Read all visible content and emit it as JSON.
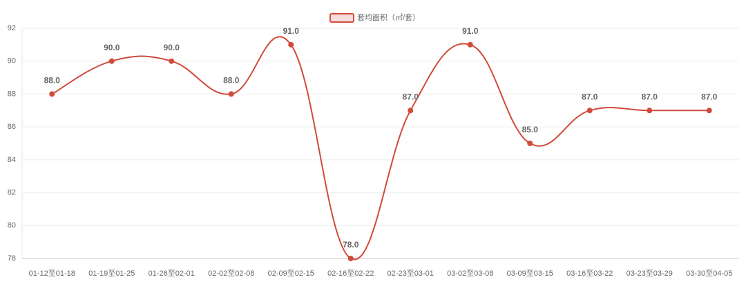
{
  "chart_data": {
    "type": "line",
    "categories": [
      "01-12至01-18",
      "01-19至01-25",
      "01-26至02-01",
      "02-02至02-08",
      "02-09至02-15",
      "02-16至02-22",
      "02-23至03-01",
      "03-02至03-08",
      "03-09至03-15",
      "03-16至03-22",
      "03-23至03-29",
      "03-30至04-05"
    ],
    "series": [
      {
        "name": "套均面积（㎡/套）",
        "color": "#d14a3b",
        "values": [
          88,
          90,
          90,
          88,
          91,
          78,
          87,
          91,
          85,
          87,
          87,
          87
        ],
        "value_labels": [
          "88.0",
          "90.0",
          "90.0",
          "88.0",
          "91.0",
          "78.0",
          "87.0",
          "91.0",
          "85.0",
          "87.0",
          "87.0",
          "87.0"
        ]
      }
    ],
    "ylim": [
      78,
      92
    ],
    "yticks": [
      78,
      80,
      82,
      84,
      86,
      88,
      90,
      92
    ],
    "grid": true,
    "smooth": true,
    "legend": "top"
  }
}
